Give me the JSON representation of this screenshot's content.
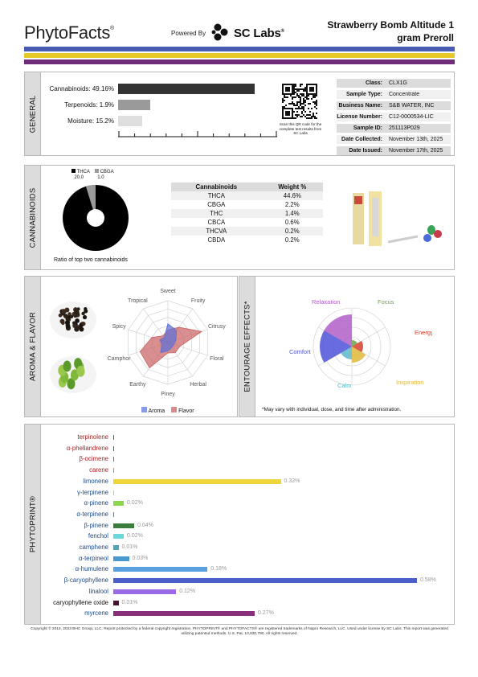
{
  "header": {
    "logo": "PhytoFacts",
    "logo_mark": "®",
    "powered_by": "Powered By",
    "lab_name": "SC Labs",
    "lab_mark": "®",
    "product_line1": "Strawberry Bomb Altitude 1",
    "product_line2": "gram Preroll",
    "stripe_colors": [
      "#4a5bb4",
      "#e9c92a",
      "#6f2d7a"
    ]
  },
  "general": {
    "tab": "GENERAL",
    "bars": [
      {
        "label": "Cannabinoids:",
        "value": "49.16%",
        "fraction": 0.4916,
        "color": "#333333"
      },
      {
        "label": "Terpenoids:",
        "value": "1.9%",
        "fraction": 0.019,
        "color": "#9a9a9a"
      },
      {
        "label": "Moisture:",
        "value": "15.2%",
        "fraction": 0.152,
        "color": "#dedede"
      }
    ],
    "qr_caption": "Scan this QR code for the complete test results from SC Labs",
    "info": [
      {
        "key": "Class:",
        "value": "CLX1G"
      },
      {
        "key": "Sample Type:",
        "value": "Concentrate"
      },
      {
        "key": "Business Name:",
        "value": "S&B WATER, INC"
      },
      {
        "key": "License Number:",
        "value": "C12-0000534-LIC"
      },
      {
        "key": "Sample ID:",
        "value": "251113P029"
      },
      {
        "key": "Date Collected:",
        "value": "November 13th, 2025"
      },
      {
        "key": "Date Issued:",
        "value": "November 17th, 2025"
      }
    ]
  },
  "cannabinoids": {
    "tab": "CANNABINOIDS",
    "legend": [
      {
        "name": "THCA",
        "value": "20.0",
        "color": "#000000"
      },
      {
        "name": "CBGA",
        "value": "1.0",
        "color": "#9a9a9a"
      }
    ],
    "pie_caption": "Ratio of top two cannabinoids",
    "table_headers": [
      "Cannabinoids",
      "Weight %"
    ],
    "rows": [
      [
        "THCA",
        "44.6%"
      ],
      [
        "CBGA",
        "2.2%"
      ],
      [
        "THC",
        "1.4%"
      ],
      [
        "CBCA",
        "0.6%"
      ],
      [
        "THCVA",
        "0.2%"
      ],
      [
        "CBDA",
        "0.2%"
      ]
    ]
  },
  "aroma": {
    "tab": "AROMA & FLAVOR",
    "axes": [
      "Sweet",
      "Fruity",
      "Citrusy",
      "Floral",
      "Herbal",
      "Piney",
      "Earthy",
      "Camphor",
      "Spicy",
      "Tropical"
    ],
    "aroma_values": [
      0.45,
      0.35,
      0.2,
      0.15,
      0.15,
      0.2,
      0.3,
      0.15,
      0.2,
      0.15
    ],
    "flavor_values": [
      0.3,
      0.45,
      0.85,
      0.3,
      0.3,
      0.25,
      0.75,
      0.7,
      0.4,
      0.2
    ],
    "legend_aroma": "Aroma",
    "legend_flavor": "Flavor",
    "aroma_color": "#5b6fd8",
    "flavor_color": "#c9605f"
  },
  "entourage": {
    "tab": "ENTOURAGE EFFECTS*",
    "labels": [
      {
        "name": "Relaxation",
        "color": "#b15fc9"
      },
      {
        "name": "Focus",
        "color": "#6aa64a"
      },
      {
        "name": "Energy",
        "color": "#d9402a"
      },
      {
        "name": "Inspiration",
        "color": "#e0b83a"
      },
      {
        "name": "Calm",
        "color": "#5fb8c9"
      },
      {
        "name": "Comfort",
        "color": "#4e52d8"
      }
    ],
    "footnote": "*May vary with individual, dose, and time after administration."
  },
  "phytoprint": {
    "tab": "PHYTOPRINT®",
    "max": 0.58,
    "terpenes": [
      {
        "name": "terpinolene",
        "value": 0.0,
        "label": "",
        "color": "#c0392b"
      },
      {
        "name": "α-phellandrene",
        "value": 0.0,
        "label": "",
        "color": "#c0392b"
      },
      {
        "name": "β-ocimene",
        "value": 0.0,
        "label": "",
        "color": "#d35400"
      },
      {
        "name": "carene",
        "value": 0.0,
        "label": "",
        "color": "#d68910"
      },
      {
        "name": "limonene",
        "value": 0.32,
        "label": "0.32%",
        "color": "#f0d53a"
      },
      {
        "name": "γ-terpinene",
        "value": 0.0,
        "label": "",
        "color": "#c7d84a"
      },
      {
        "name": "α-pinene",
        "value": 0.02,
        "label": "0.02%",
        "color": "#8bd84a"
      },
      {
        "name": "α-terpinene",
        "value": 0.0,
        "label": "",
        "color": "#4a9a3a"
      },
      {
        "name": "β-pinene",
        "value": 0.04,
        "label": "0.04%",
        "color": "#3b7d3b"
      },
      {
        "name": "fenchol",
        "value": 0.02,
        "label": "0.02%",
        "color": "#6ad8d8"
      },
      {
        "name": "camphene",
        "value": 0.01,
        "label": "0.01%",
        "color": "#4aa8b8"
      },
      {
        "name": "α-terpineol",
        "value": 0.03,
        "label": "0.03%",
        "color": "#4a98d0"
      },
      {
        "name": "α-humulene",
        "value": 0.18,
        "label": "0.18%",
        "color": "#5aa0e0"
      },
      {
        "name": "β-caryophyllene",
        "value": 0.58,
        "label": "0.58%",
        "color": "#4b5fc8"
      },
      {
        "name": "linalool",
        "value": 0.12,
        "label": "0.12%",
        "color": "#9a6ae8"
      },
      {
        "name": "caryophyllene oxide",
        "value": 0.01,
        "label": "0.01%",
        "color": "#4a1030"
      },
      {
        "name": "myrcene",
        "value": 0.27,
        "label": "0.27%",
        "color": "#8a2f7a"
      }
    ]
  },
  "footer": "Copyright © 2013, 2023 BHC Group, LLC. Report protected by a federal copyright registration. PHYTOPRINT® and PHYTOFACTS® are registered trademarks of Napro Research, LLC. Used under license by SC Labs. This report was generated utilizing patented methods. U.S. Pat. 10,830,780. All rights reserved."
}
